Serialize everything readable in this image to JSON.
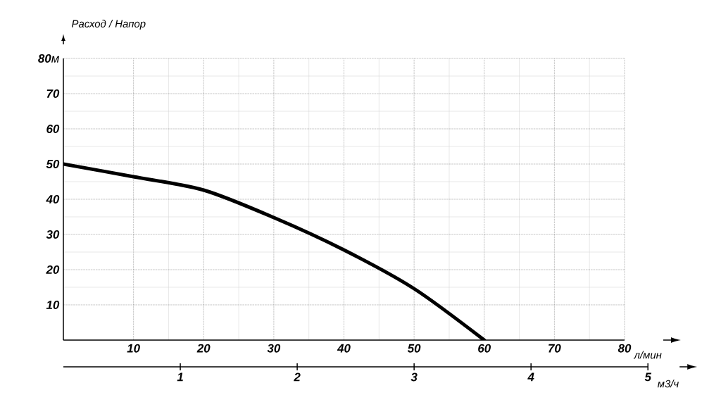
{
  "chart_data": {
    "type": "line",
    "ylabel": "Расход / Напор",
    "xlabel": "л/мин",
    "x2label": "м3/ч",
    "x": [
      0,
      10,
      20,
      30,
      40,
      50,
      60
    ],
    "values": [
      50,
      46.4,
      42.6,
      34.8,
      25.6,
      14.6,
      0
    ],
    "color": "#000000",
    "xlim": [
      0,
      80
    ],
    "ylim": [
      0,
      80
    ],
    "xticks": [
      10,
      20,
      30,
      40,
      50,
      60,
      70,
      80
    ],
    "yticks": [
      10,
      20,
      30,
      40,
      50,
      60,
      70,
      {
        "value": 80,
        "label": "**80**м"
      }
    ],
    "x2lim": [
      0,
      5
    ],
    "x2ticks": [
      1,
      2,
      3,
      4,
      5
    ],
    "grid": true
  }
}
